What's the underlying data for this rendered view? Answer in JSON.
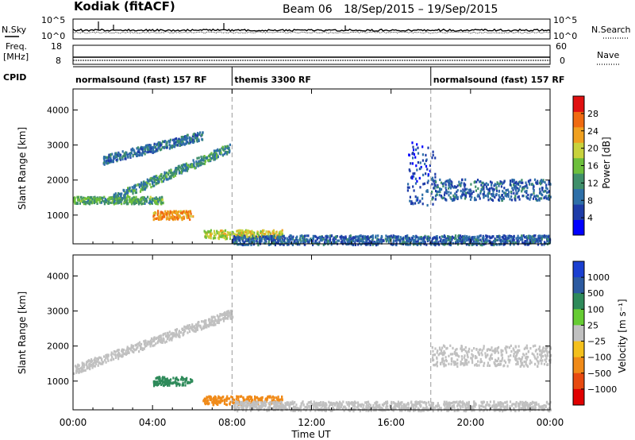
{
  "header": {
    "station": "Kodiak  (fitACF)",
    "beam": "Beam 06",
    "date_range": "18/Sep/2015 – 19/Sep/2015"
  },
  "noise_panel": {
    "left_label": "N.Sky",
    "right_label": "N.Search",
    "left_ticks": [
      "10^5",
      "10^0"
    ],
    "right_ticks": [
      "10^5",
      "10^0"
    ]
  },
  "freq_panel": {
    "left_label_line1": "Freq.",
    "left_label_line2": "[MHz]",
    "right_label": "Nave",
    "left_ticks": [
      "18",
      "8"
    ],
    "right_ticks": [
      "60",
      "0"
    ]
  },
  "cpid": {
    "label": "CPID",
    "segments": [
      {
        "start_hour": 0,
        "end_hour": 8,
        "name": "normalsound (fast) 157 RF"
      },
      {
        "start_hour": 8,
        "end_hour": 18,
        "name": "themis 3300 RF"
      },
      {
        "start_hour": 18,
        "end_hour": 24,
        "name": "normalsound (fast) 157 RF"
      }
    ]
  },
  "chart_data": [
    {
      "type": "heatmap",
      "title": "",
      "xlabel": "Time UT",
      "ylabel": "Slant Range [km]",
      "xlim": [
        0,
        24
      ],
      "ylim": [
        180,
        4600
      ],
      "x_ticks": [
        "00:00",
        "04:00",
        "08:00",
        "12:00",
        "16:00",
        "20:00",
        "00:00"
      ],
      "y_ticks": [
        1000,
        2000,
        3000,
        4000
      ],
      "mode_change_hours": [
        8,
        18
      ],
      "colorbar": {
        "label": "Power [dB]",
        "range": [
          0,
          32
        ],
        "ticks": [
          4,
          8,
          12,
          16,
          20,
          24,
          28
        ],
        "colors": [
          "#0000ff",
          "#1e3ca8",
          "#2e6fa8",
          "#3f8f6a",
          "#6dbf3c",
          "#c8d23c",
          "#f0a020",
          "#f06a10",
          "#e01010"
        ]
      },
      "features": [
        {
          "t_start": 0.0,
          "t_end": 4.5,
          "range_start_km": 1350,
          "range_end_km": 1550,
          "value": 14
        },
        {
          "t_start": 2.0,
          "t_end": 7.9,
          "range_start_km": 1500,
          "range_end_km": 2950,
          "value": 12
        },
        {
          "t_start": 1.5,
          "t_end": 6.5,
          "range_start_km": 2600,
          "range_end_km": 3300,
          "value": 9
        },
        {
          "t_start": 4.0,
          "t_end": 6.0,
          "range_start_km": 900,
          "range_end_km": 1150,
          "value": 24
        },
        {
          "t_start": 6.5,
          "t_end": 10.5,
          "range_start_km": 350,
          "range_end_km": 600,
          "value": 20
        },
        {
          "t_start": 8.0,
          "t_end": 24.0,
          "range_start_km": 180,
          "range_end_km": 450,
          "value": 8
        },
        {
          "t_start": 16.8,
          "t_end": 18.2,
          "range_start_km": 1300,
          "range_end_km": 3100,
          "value": 6
        },
        {
          "t_start": 18.0,
          "t_end": 24.0,
          "range_start_km": 1450,
          "range_end_km": 2050,
          "value": 8
        }
      ]
    },
    {
      "type": "heatmap",
      "title": "",
      "xlabel": "Time UT",
      "ylabel": "Slant Range [km]",
      "xlim": [
        0,
        24
      ],
      "ylim": [
        180,
        4600
      ],
      "x_ticks": [
        "00:00",
        "04:00",
        "08:00",
        "12:00",
        "16:00",
        "20:00",
        "00:00"
      ],
      "y_ticks": [
        1000,
        2000,
        3000,
        4000
      ],
      "mode_change_hours": [
        8,
        18
      ],
      "colorbar": {
        "label": "Velocity [m s⁻¹]",
        "ticks": [
          "1000",
          "500",
          "100",
          "25",
          "−25",
          "−100",
          "−500",
          "−1000"
        ],
        "colors": [
          "#1a3fd0",
          "#2c5aa0",
          "#2e8a5a",
          "#66cc33",
          "#c0c0c0",
          "#f4c01c",
          "#f08a18",
          "#e84a10",
          "#e00000"
        ]
      },
      "features": [
        {
          "t_start": 0.0,
          "t_end": 8.0,
          "range_start_km": 1350,
          "range_end_km": 2950,
          "value": 0
        },
        {
          "t_start": 4.0,
          "t_end": 6.0,
          "range_start_km": 900,
          "range_end_km": 1150,
          "value": 80
        },
        {
          "t_start": 6.5,
          "t_end": 10.5,
          "range_start_km": 350,
          "range_end_km": 600,
          "value": -80
        },
        {
          "t_start": 8.0,
          "t_end": 24.0,
          "range_start_km": 180,
          "range_end_km": 450,
          "value": 0
        },
        {
          "t_start": 18.0,
          "t_end": 24.0,
          "range_start_km": 1450,
          "range_end_km": 2050,
          "value": 0
        }
      ]
    }
  ]
}
